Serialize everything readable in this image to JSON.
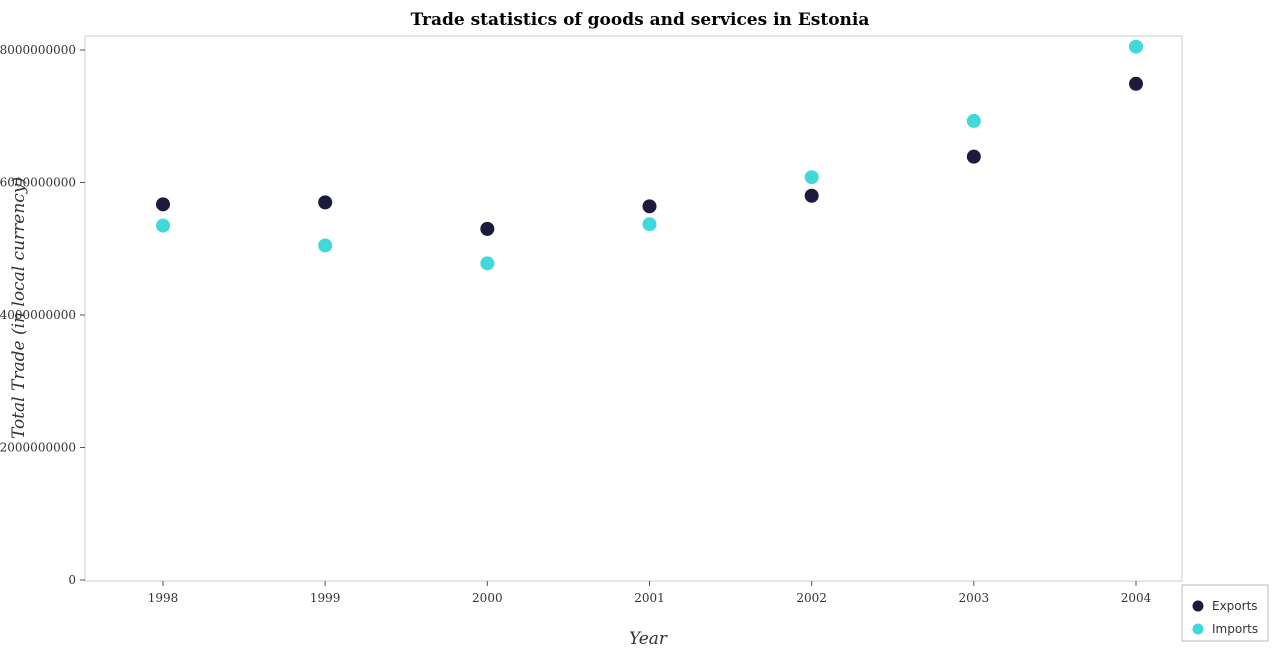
{
  "chart_data": {
    "type": "scatter",
    "title": "Trade statistics of goods and services in Estonia",
    "xlabel": "Year",
    "ylabel": "Total Trade (in local currency)",
    "x": [
      "1998",
      "1999",
      "2000",
      "2001",
      "2002",
      "2003",
      "2004"
    ],
    "yticks": [
      0,
      2000000000,
      4000000000,
      6000000000,
      8000000000
    ],
    "ytick_labels": [
      "0",
      "2000000000",
      "4000000000",
      "6000000000",
      "8000000000"
    ],
    "ylim": [
      0,
      8200000000
    ],
    "grid": false,
    "legend_position": "bottom-right",
    "series": [
      {
        "name": "Exports",
        "color": "#1c1a3d",
        "values": [
          5670000000,
          5700000000,
          5300000000,
          5640000000,
          5800000000,
          6390000000,
          7490000000
        ]
      },
      {
        "name": "Imports",
        "color": "#40d8d8",
        "values": [
          5350000000,
          5050000000,
          4780000000,
          5370000000,
          6080000000,
          6930000000,
          8050000000
        ]
      }
    ]
  }
}
